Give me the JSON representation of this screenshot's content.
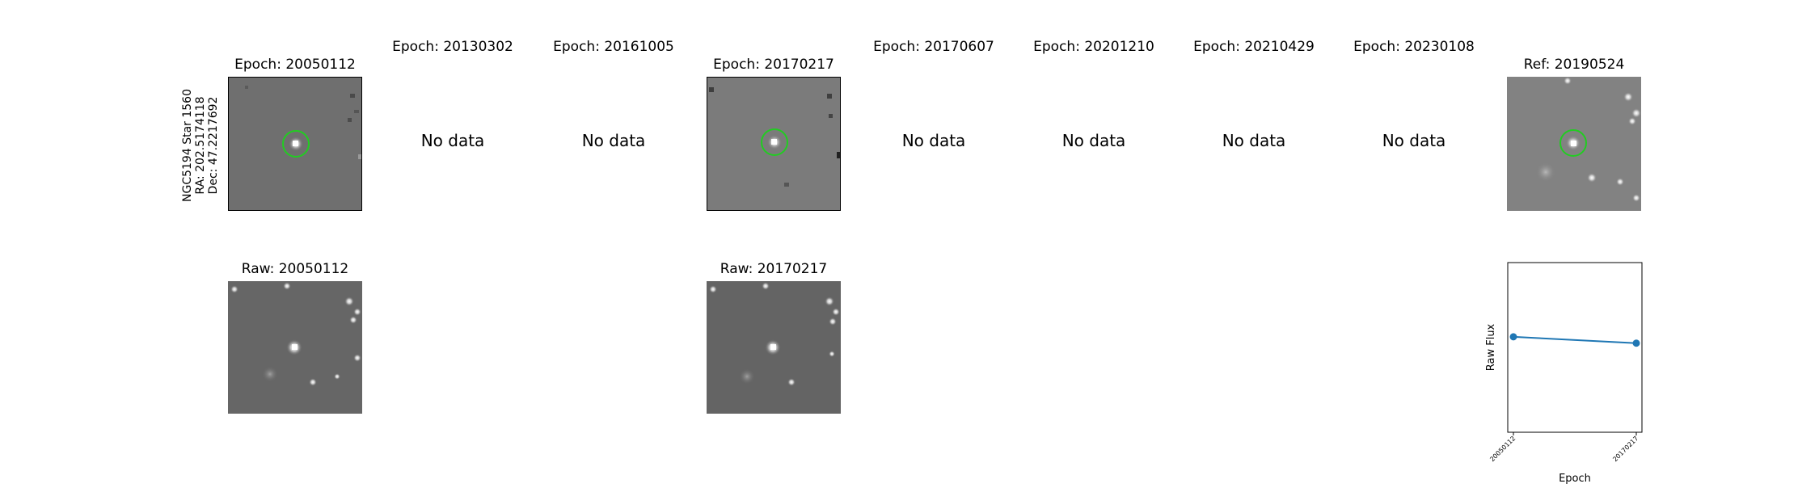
{
  "star_info": {
    "name": "NGC5194 Star 1560",
    "ra": "RA: 202.5174118",
    "dec": "Dec: 47.2217692"
  },
  "no_data_text": "No data",
  "epochs": [
    {
      "title": "Epoch: 20050112",
      "has_data": true
    },
    {
      "title": "Epoch: 20130302",
      "has_data": false
    },
    {
      "title": "Epoch: 20161005",
      "has_data": false
    },
    {
      "title": "Epoch: 20170217",
      "has_data": true
    },
    {
      "title": "Epoch: 20170607",
      "has_data": false
    },
    {
      "title": "Epoch: 20201210",
      "has_data": false
    },
    {
      "title": "Epoch: 20210429",
      "has_data": false
    },
    {
      "title": "Epoch: 20230108",
      "has_data": false
    }
  ],
  "ref_title": "Ref: 20190524",
  "raw_titles": [
    "Raw: 20050112",
    "Raw: 20170217"
  ],
  "colors": {
    "series": "#1f77b4",
    "circle": "#22cc22",
    "bg_gray": "#7a7a7a"
  },
  "chart_data": {
    "type": "line",
    "xlabel": "Epoch",
    "ylabel": "Raw Flux",
    "categories": [
      "20050112",
      "20170217"
    ],
    "series": [
      {
        "values": [
          1.0,
          0.97
        ]
      }
    ],
    "ylim": [
      0.55,
      1.35
    ],
    "grid": false
  }
}
